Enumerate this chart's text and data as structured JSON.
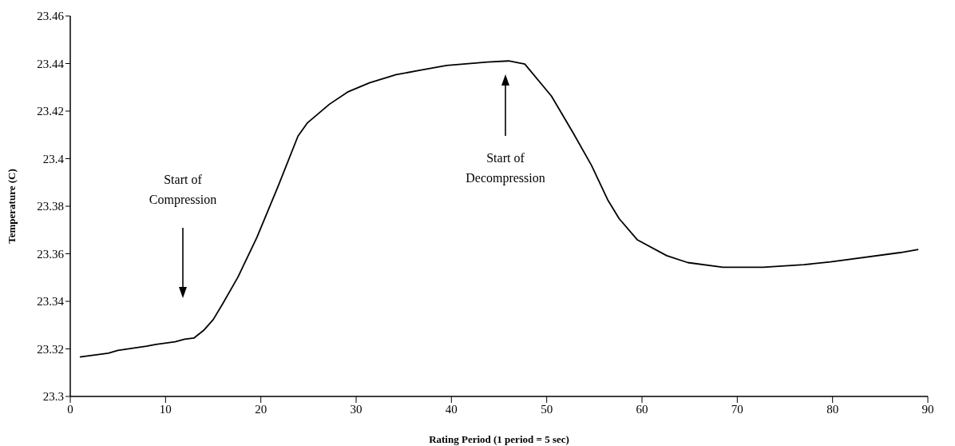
{
  "chart_data": {
    "type": "line",
    "xlabel": "Rating Period (1 period = 5 sec)",
    "ylabel": "Temperature (C)",
    "xlim": [
      0,
      90
    ],
    "xticks": [
      0,
      10,
      20,
      30,
      40,
      50,
      60,
      70,
      80,
      90
    ],
    "ylim": [
      23.3,
      23.46
    ],
    "yticks": [
      23.3,
      23.32,
      23.34,
      23.36,
      23.38,
      23.4,
      23.42,
      23.44,
      23.46
    ],
    "grid": false,
    "legend": false,
    "marker": "none",
    "line_style": "solid",
    "series": [
      {
        "color": "#000000",
        "x": [
          1,
          4,
          5,
          8,
          9,
          11,
          12,
          13,
          14,
          15,
          16,
          17.6,
          19.6,
          21.8,
          23.9,
          24.9,
          27.2,
          29.1,
          31.4,
          34.2,
          36.7,
          39.5,
          43.8,
          46,
          47.7,
          50.5,
          52.8,
          54.7,
          56.4,
          57.6,
          59.5,
          62.6,
          64.8,
          68.5,
          72.7,
          77,
          79.8,
          87.1,
          89
        ],
        "values": [
          23.3166,
          23.3182,
          23.3194,
          23.3211,
          23.3219,
          23.323,
          23.3241,
          23.3246,
          23.3278,
          23.3323,
          23.339,
          23.3502,
          23.367,
          23.3883,
          23.4095,
          23.4151,
          23.4229,
          23.428,
          23.4319,
          23.4353,
          23.4372,
          23.4392,
          23.4406,
          23.4411,
          23.4398,
          23.4263,
          23.4107,
          23.3972,
          23.3827,
          23.3748,
          23.3659,
          23.3592,
          23.3563,
          23.3543,
          23.3543,
          23.3554,
          23.3566,
          23.3605,
          23.3618
        ]
      }
    ],
    "annotations": [
      "Start of\nCompression",
      "Start of\nDecompression"
    ]
  }
}
